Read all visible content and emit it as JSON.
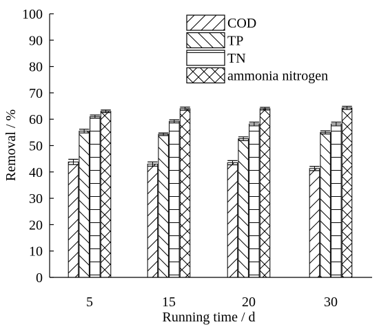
{
  "chart_data": {
    "type": "bar",
    "ylabel": "Removal / %",
    "xlabel": "Running time / d",
    "ylim": [
      0,
      100
    ],
    "yticks": [
      0,
      10,
      20,
      30,
      40,
      50,
      60,
      70,
      80,
      90,
      100
    ],
    "categories": [
      "5",
      "15",
      "20",
      "30"
    ],
    "series": [
      {
        "name": "COD",
        "pattern": "forward-diagonal",
        "values": [
          43.8,
          43.0,
          43.5,
          41.3
        ],
        "errors": [
          1.0,
          0.8,
          0.8,
          0.8
        ]
      },
      {
        "name": "TP",
        "pattern": "back-diagonal",
        "values": [
          55.5,
          54.3,
          52.6,
          55.0
        ],
        "errors": [
          0.7,
          0.5,
          0.7,
          0.6
        ]
      },
      {
        "name": "TN",
        "pattern": "horizontal-lines",
        "values": [
          61.0,
          59.2,
          58.2,
          58.2
        ],
        "errors": [
          0.6,
          0.6,
          0.7,
          0.7
        ]
      },
      {
        "name": "ammonia nitrogen",
        "pattern": "cross-hatch",
        "values": [
          63.0,
          64.0,
          64.0,
          64.3
        ],
        "errors": [
          0.5,
          0.6,
          0.5,
          0.6
        ]
      }
    ],
    "legend_position": "top-right",
    "grid": false
  }
}
